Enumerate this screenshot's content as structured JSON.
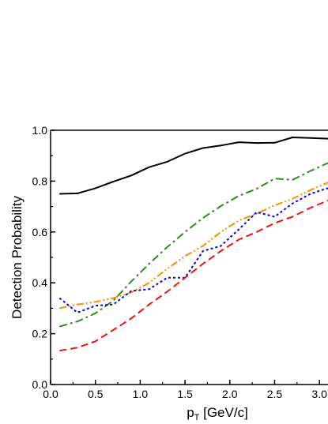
{
  "chart_data": {
    "type": "line",
    "title": "",
    "xlabel": {
      "main": "p",
      "sub": "T",
      "rest": " [GeV/c]"
    },
    "ylabel": "Detection Probability",
    "xlim": [
      0.0,
      3.1
    ],
    "ylim": [
      0.0,
      1.0
    ],
    "xticks": [
      0.0,
      0.5,
      1.0,
      1.5,
      2.0,
      2.5,
      3.0
    ],
    "xtick_labels": [
      "0.0",
      "0.5",
      "1.0",
      "1.5",
      "2.0",
      "2.5",
      "3.0"
    ],
    "yticks": [
      0.0,
      0.2,
      0.4,
      0.6,
      0.8,
      1.0
    ],
    "ytick_labels": [
      "0.0",
      "0.2",
      "0.4",
      "0.6",
      "0.8",
      "1.0"
    ],
    "grid": false,
    "legend": "none",
    "series": [
      {
        "color": "#000000",
        "dash": "solid",
        "points": [
          [
            0.1,
            0.75
          ],
          [
            0.3,
            0.752
          ],
          [
            0.5,
            0.772
          ],
          [
            0.7,
            0.798
          ],
          [
            0.9,
            0.822
          ],
          [
            1.1,
            0.855
          ],
          [
            1.3,
            0.876
          ],
          [
            1.5,
            0.908
          ],
          [
            1.7,
            0.93
          ],
          [
            1.9,
            0.94
          ],
          [
            2.1,
            0.953
          ],
          [
            2.3,
            0.95
          ],
          [
            2.5,
            0.951
          ],
          [
            2.7,
            0.972
          ],
          [
            2.9,
            0.97
          ],
          [
            3.1,
            0.967
          ]
        ]
      },
      {
        "color": "#2e8b1f",
        "dash": "dashdot",
        "points": [
          [
            0.1,
            0.228
          ],
          [
            0.3,
            0.248
          ],
          [
            0.5,
            0.28
          ],
          [
            0.7,
            0.33
          ],
          [
            0.9,
            0.405
          ],
          [
            1.1,
            0.475
          ],
          [
            1.3,
            0.54
          ],
          [
            1.5,
            0.6
          ],
          [
            1.7,
            0.655
          ],
          [
            1.9,
            0.702
          ],
          [
            2.1,
            0.742
          ],
          [
            2.3,
            0.77
          ],
          [
            2.5,
            0.81
          ],
          [
            2.7,
            0.805
          ],
          [
            2.9,
            0.84
          ],
          [
            3.1,
            0.872
          ]
        ]
      },
      {
        "color": "#ff8c00",
        "dash": "dashdotdot",
        "points": [
          [
            0.1,
            0.3
          ],
          [
            0.3,
            0.315
          ],
          [
            0.5,
            0.325
          ],
          [
            0.7,
            0.34
          ],
          [
            0.9,
            0.362
          ],
          [
            1.1,
            0.4
          ],
          [
            1.3,
            0.455
          ],
          [
            1.5,
            0.505
          ],
          [
            1.7,
            0.545
          ],
          [
            1.9,
            0.6
          ],
          [
            2.1,
            0.645
          ],
          [
            2.3,
            0.672
          ],
          [
            2.5,
            0.705
          ],
          [
            2.7,
            0.73
          ],
          [
            2.9,
            0.765
          ],
          [
            3.1,
            0.795
          ]
        ]
      },
      {
        "color": "#0000ee",
        "dash": "dot",
        "points": [
          [
            0.1,
            0.34
          ],
          [
            0.3,
            0.283
          ],
          [
            0.5,
            0.31
          ],
          [
            0.7,
            0.315
          ],
          [
            0.9,
            0.368
          ],
          [
            1.1,
            0.375
          ],
          [
            1.3,
            0.42
          ],
          [
            1.5,
            0.42
          ],
          [
            1.7,
            0.525
          ],
          [
            1.9,
            0.545
          ],
          [
            2.1,
            0.61
          ],
          [
            2.3,
            0.678
          ],
          [
            2.5,
            0.66
          ],
          [
            2.7,
            0.712
          ],
          [
            2.9,
            0.75
          ],
          [
            3.1,
            0.773
          ]
        ]
      },
      {
        "color": "#ee1111",
        "dash": "dash",
        "points": [
          [
            0.1,
            0.133
          ],
          [
            0.3,
            0.145
          ],
          [
            0.5,
            0.17
          ],
          [
            0.7,
            0.215
          ],
          [
            0.9,
            0.26
          ],
          [
            1.1,
            0.315
          ],
          [
            1.3,
            0.365
          ],
          [
            1.5,
            0.42
          ],
          [
            1.7,
            0.475
          ],
          [
            1.9,
            0.525
          ],
          [
            2.1,
            0.57
          ],
          [
            2.3,
            0.6
          ],
          [
            2.5,
            0.635
          ],
          [
            2.7,
            0.66
          ],
          [
            2.9,
            0.695
          ],
          [
            3.1,
            0.725
          ]
        ]
      }
    ]
  }
}
